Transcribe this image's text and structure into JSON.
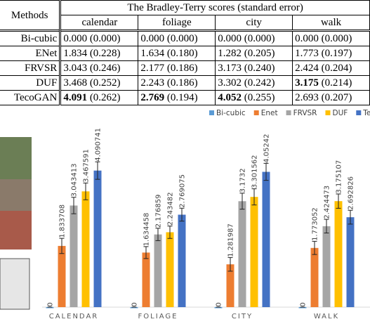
{
  "table": {
    "header": {
      "methods": "Methods",
      "title": "The Bradley-Terry scores (standard error)",
      "columns": [
        "calendar",
        "foliage",
        "city",
        "walk"
      ]
    },
    "rows": [
      {
        "method": "Bi-cubic",
        "cells": [
          {
            "score": "0.000",
            "se": "(0.000)"
          },
          {
            "score": "0.000",
            "se": "(0.000)"
          },
          {
            "score": "0.000",
            "se": "(0.000)"
          },
          {
            "score": "0.000",
            "se": "(0.000)"
          }
        ]
      },
      {
        "method": "ENet",
        "cells": [
          {
            "score": "1.834",
            "se": "(0.228)"
          },
          {
            "score": "1.634",
            "se": "(0.180)"
          },
          {
            "score": "1.282",
            "se": "(0.205)"
          },
          {
            "score": "1.773",
            "se": "(0.197)"
          }
        ]
      },
      {
        "method": "FRVSR",
        "cells": [
          {
            "score": "3.043",
            "se": "(0.246)"
          },
          {
            "score": "2.177",
            "se": "(0.186)"
          },
          {
            "score": "3.173",
            "se": "(0.240)"
          },
          {
            "score": "2.424",
            "se": "(0.204)"
          }
        ]
      },
      {
        "method": "DUF",
        "cells": [
          {
            "score": "3.468",
            "se": "(0.252)"
          },
          {
            "score": "2.243",
            "se": "(0.186)"
          },
          {
            "score": "3.302",
            "se": "(0.242)"
          },
          {
            "score": "3.175",
            "se": "(0.214)",
            "bold": true
          }
        ]
      },
      {
        "method": "TecoGAN",
        "cells": [
          {
            "score": "4.091",
            "se": "(0.262)",
            "bold": true
          },
          {
            "score": "2.769",
            "se": "(0.194)",
            "bold": true
          },
          {
            "score": "4.052",
            "se": "(0.255)",
            "bold": true
          },
          {
            "score": "2.693",
            "se": "(0.207)"
          }
        ]
      }
    ]
  },
  "chart_data": {
    "type": "bar",
    "categories": [
      "CALENDAR",
      "FOLIAGE",
      "CITY",
      "WALK"
    ],
    "ylim": [
      0,
      5.2
    ],
    "legend": "top",
    "series": [
      {
        "name": "Bi-cubic",
        "color": "#5b9bd5",
        "values": [
          0,
          0,
          0,
          0
        ],
        "errors": [
          0,
          0,
          0,
          0
        ]
      },
      {
        "name": "Enet",
        "color": "#ed7d31",
        "values": [
          1.833708,
          1.634458,
          1.281987,
          1.773052
        ],
        "errors": [
          0.228,
          0.18,
          0.205,
          0.197
        ]
      },
      {
        "name": "FRVSR",
        "color": "#a5a5a5",
        "values": [
          3.043413,
          2.176859,
          3.1732,
          2.424473
        ],
        "errors": [
          0.246,
          0.186,
          0.24,
          0.204
        ]
      },
      {
        "name": "DUF",
        "color": "#ffc000",
        "values": [
          3.467591,
          2.243482,
          3.301562,
          3.175107
        ],
        "errors": [
          0.252,
          0.186,
          0.242,
          0.214
        ]
      },
      {
        "name": "TecoGAN",
        "color": "#4472c4",
        "values": [
          4.090741,
          2.769075,
          4.05242,
          2.692826
        ],
        "errors": [
          0.262,
          0.194,
          0.255,
          0.207
        ]
      }
    ]
  }
}
